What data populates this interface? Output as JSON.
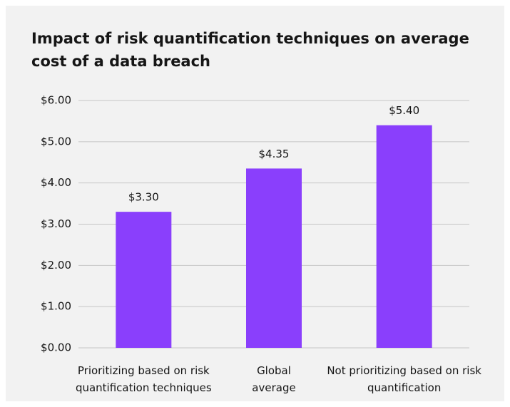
{
  "chart_data": {
    "type": "bar",
    "title": "Impact of risk quantification techniques on average cost of a data breach",
    "categories": [
      "Prioritizing based on risk quantification techniques",
      "Global average",
      "Not prioritizing based on risk quantification"
    ],
    "values": [
      3.3,
      4.35,
      5.4
    ],
    "value_labels": [
      "$3.30",
      "$4.35",
      "$5.40"
    ],
    "color": "#8a3ffc",
    "ylim": [
      0,
      6
    ],
    "yticks": [
      {
        "value": 0,
        "label": "$0.00"
      },
      {
        "value": 1,
        "label": "$1.00"
      },
      {
        "value": 2,
        "label": "$2.00"
      },
      {
        "value": 3,
        "label": "$3.00"
      },
      {
        "value": 4,
        "label": "$4.00"
      },
      {
        "value": 5,
        "label": "$5.00"
      },
      {
        "value": 6,
        "label": "$6.00"
      }
    ],
    "grid": true
  }
}
